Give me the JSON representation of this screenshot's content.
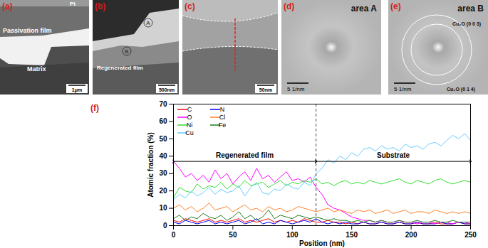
{
  "image_panels": [
    {
      "label": "(a)",
      "texts": [
        "Pt",
        "Passivation film",
        "Matrix"
      ],
      "scale_bar": "1μm"
    },
    {
      "label": "(b)",
      "texts": [
        "Regenerated film"
      ],
      "markers": [
        "A",
        "B"
      ],
      "scale_bar": "500nm"
    },
    {
      "label": "(c)",
      "scale_bar": "50nm"
    },
    {
      "label": "(d)",
      "title": "area A",
      "scale_bar": "5 1/nm"
    },
    {
      "label": "(e)",
      "title": "area B",
      "rings": [
        "Cu₂O (0 0 3)",
        "Cu₂O (0 1 4)"
      ],
      "scale_bar": "5 1/nm"
    }
  ],
  "chart_data": {
    "type": "line",
    "panel_label": "(f)",
    "x_label": "Position (nm)",
    "y_label": "Atomic fraction (%)",
    "x": [
      0,
      5,
      10,
      15,
      20,
      25,
      30,
      35,
      40,
      45,
      50,
      55,
      60,
      65,
      70,
      75,
      80,
      85,
      90,
      95,
      100,
      105,
      110,
      115,
      120,
      125,
      130,
      135,
      140,
      145,
      150,
      155,
      160,
      165,
      170,
      175,
      180,
      185,
      190,
      195,
      200,
      205,
      210,
      215,
      220,
      225,
      230,
      235,
      240,
      245,
      250
    ],
    "xlim": [
      0,
      250
    ],
    "xticks": [
      0,
      50,
      100,
      150,
      200,
      250
    ],
    "ylim": [
      0,
      70
    ],
    "yticks": [
      0,
      10,
      20,
      30,
      40,
      50,
      60,
      70
    ],
    "legend": "top-left",
    "series": [
      {
        "name": "C",
        "color": "#ff0000",
        "values": [
          3,
          2,
          4,
          3,
          2,
          3,
          4,
          2,
          3,
          2,
          3,
          4,
          2,
          3,
          2,
          3,
          4,
          2,
          3,
          2,
          3,
          2,
          4,
          3,
          2,
          2,
          3,
          2,
          2,
          1,
          2,
          1,
          2,
          1,
          1,
          2,
          1,
          1,
          2,
          1,
          1,
          2,
          1,
          1,
          2,
          1,
          1,
          1,
          2,
          1,
          1
        ]
      },
      {
        "name": "N",
        "color": "#0000ff",
        "values": [
          2,
          1,
          3,
          2,
          1,
          2,
          3,
          1,
          2,
          1,
          2,
          3,
          1,
          2,
          4,
          1,
          2,
          1,
          3,
          2,
          1,
          2,
          3,
          2,
          4,
          2,
          1,
          2,
          1,
          2,
          1,
          1,
          2,
          1,
          1,
          2,
          1,
          1,
          2,
          1,
          1,
          2,
          1,
          1,
          1,
          2,
          1,
          1,
          2,
          1,
          1
        ]
      },
      {
        "name": "O",
        "color": "#ff00ff",
        "values": [
          37,
          33,
          28,
          30,
          26,
          29,
          25,
          32,
          27,
          30,
          24,
          28,
          31,
          26,
          33,
          27,
          29,
          25,
          28,
          31,
          26,
          27,
          25,
          28,
          22,
          18,
          12,
          10,
          9,
          7,
          5,
          4,
          3,
          3,
          2,
          3,
          2,
          2,
          3,
          2,
          2,
          1,
          2,
          2,
          1,
          2,
          2,
          1,
          2,
          2,
          1
        ]
      },
      {
        "name": "Cl",
        "color": "#ff7f27",
        "values": [
          10,
          12,
          9,
          11,
          8,
          10,
          13,
          9,
          10,
          11,
          8,
          10,
          12,
          9,
          10,
          8,
          11,
          9,
          10,
          8,
          9,
          11,
          10,
          9,
          8,
          9,
          10,
          8,
          9,
          8,
          7,
          9,
          8,
          9,
          7,
          8,
          9,
          7,
          8,
          9,
          7,
          8,
          8,
          7,
          9,
          8,
          7,
          8,
          7,
          8,
          7
        ]
      },
      {
        "name": "Ni",
        "color": "#33dd33",
        "values": [
          16,
          22,
          20,
          19,
          24,
          21,
          23,
          22,
          25,
          21,
          24,
          22,
          26,
          23,
          24,
          25,
          22,
          24,
          26,
          23,
          25,
          24,
          26,
          25,
          27,
          24,
          25,
          23,
          25,
          26,
          24,
          25,
          24,
          26,
          25,
          24,
          25,
          26,
          27,
          25,
          24,
          26,
          25,
          24,
          26,
          27,
          25,
          24,
          25,
          26,
          25
        ]
      },
      {
        "name": "Fe",
        "color": "#1e7a1e",
        "values": [
          4,
          6,
          3,
          5,
          4,
          7,
          5,
          4,
          6,
          3,
          5,
          8,
          4,
          6,
          3,
          5,
          9,
          4,
          6,
          5,
          4,
          6,
          5,
          4,
          5,
          4,
          3,
          4,
          3,
          3,
          2,
          3,
          2,
          3,
          2,
          3,
          2,
          2,
          3,
          2,
          2,
          3,
          2,
          2,
          3,
          2,
          2,
          3,
          2,
          2,
          2
        ]
      },
      {
        "name": "Cu",
        "color": "#66ccff",
        "values": [
          15,
          18,
          16,
          20,
          17,
          19,
          22,
          18,
          21,
          19,
          20,
          23,
          17,
          22,
          25,
          19,
          18,
          21,
          20,
          24,
          22,
          21,
          25,
          23,
          30,
          33,
          38,
          36,
          40,
          38,
          42,
          40,
          44,
          45,
          43,
          46,
          44,
          45,
          43,
          47,
          45,
          46,
          44,
          47,
          48,
          46,
          49,
          52,
          50,
          53,
          49
        ]
      }
    ],
    "divider": 120,
    "annotations": [
      {
        "text": "Regenerated film",
        "x1": 0,
        "x2": 120,
        "y": 37
      },
      {
        "text": "Substrate",
        "x1": 120,
        "x2": 250,
        "y": 37
      }
    ]
  }
}
